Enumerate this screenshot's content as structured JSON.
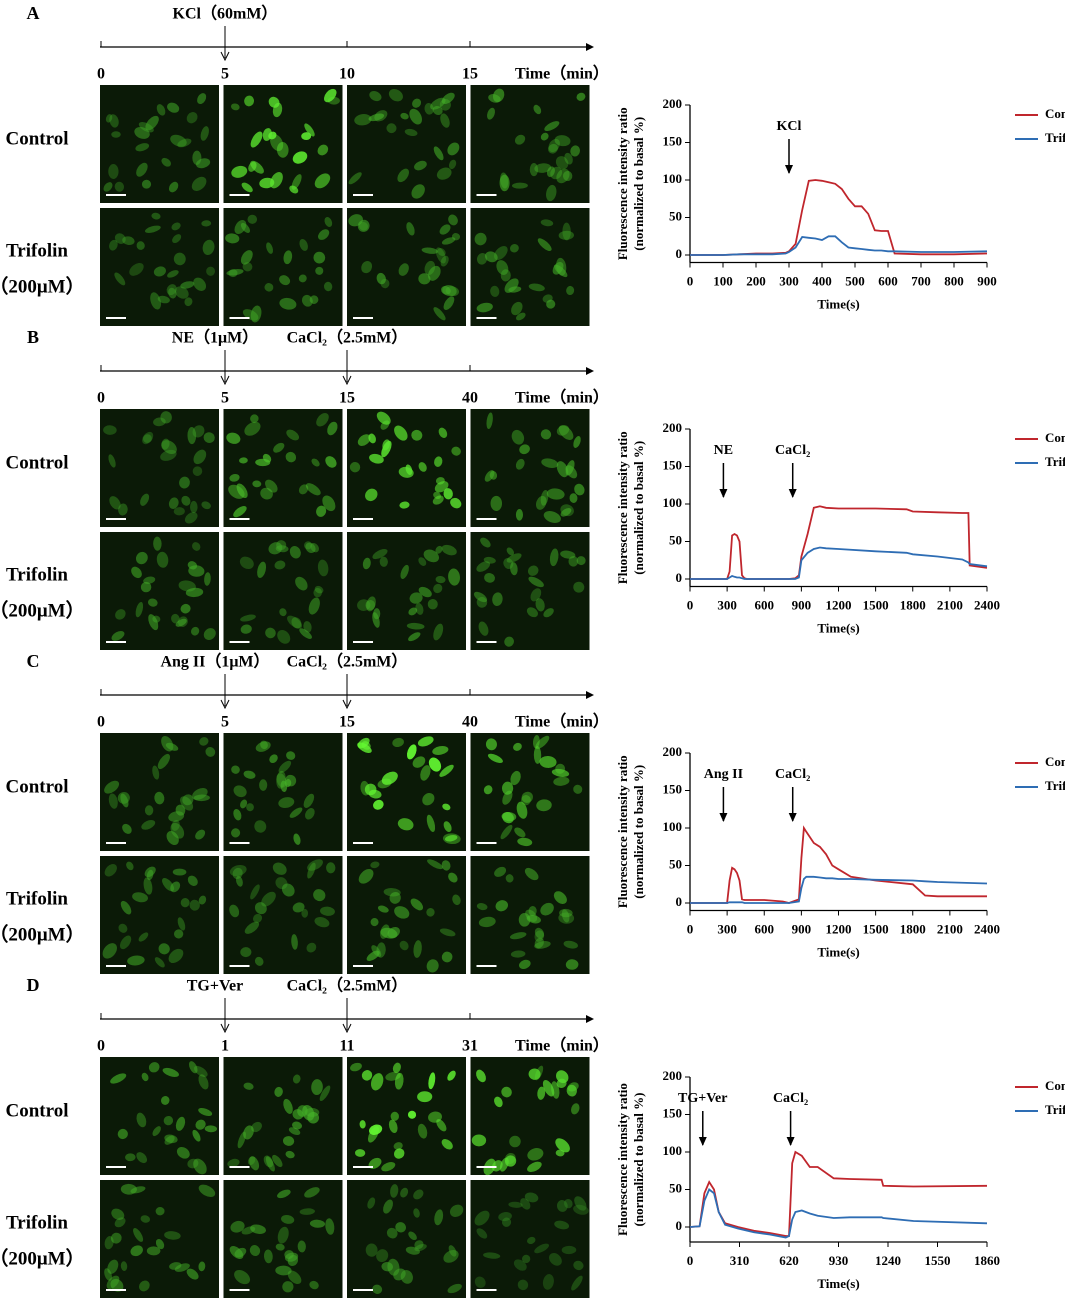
{
  "panels": [
    {
      "letter": "A",
      "events": [
        "KCl（60mM）"
      ],
      "time_ticks": [
        "0",
        "5",
        "10",
        "15"
      ],
      "time_label": "Time（min）",
      "control_label": "Control",
      "treat_label": "Trifolin",
      "treat_dose": "（200μM）"
    },
    {
      "letter": "B",
      "events": [
        "NE（1μM）",
        "CaCl₂（2.5mM）"
      ],
      "time_ticks": [
        "0",
        "5",
        "15",
        "40"
      ],
      "time_label": "Time（min）",
      "control_label": "Control",
      "treat_label": "Trifolin",
      "treat_dose": "（200μM）"
    },
    {
      "letter": "C",
      "events": [
        "Ang II（1μM）",
        "CaCl₂（2.5mM）"
      ],
      "time_ticks": [
        "0",
        "5",
        "15",
        "40"
      ],
      "time_label": "Time（min）",
      "control_label": "Control",
      "treat_label": "Trifolin",
      "treat_dose": "（200μM）"
    },
    {
      "letter": "D",
      "events": [
        "TG+Ver",
        "CaCl₂（2.5mM）"
      ],
      "time_ticks": [
        "0",
        "1",
        "11",
        "31"
      ],
      "time_label": "Time（min）",
      "control_label": "Control",
      "treat_label": "Trifolin",
      "treat_dose": "（200μM）"
    }
  ],
  "chart_data": [
    {
      "type": "line",
      "y_label": [
        "Fluorescence intensity ratio",
        "(normalized to basal %)"
      ],
      "x_label": "Time(s)",
      "x": [
        0,
        100,
        150,
        200,
        250,
        290,
        300,
        320,
        340,
        360,
        380,
        400,
        420,
        440,
        460,
        480,
        500,
        520,
        540,
        560,
        580,
        600,
        620,
        700,
        800,
        900
      ],
      "series": [
        {
          "name": "Control",
          "color": "#c0262d",
          "values": [
            0,
            0,
            1,
            2,
            2,
            3,
            5,
            15,
            60,
            99,
            100,
            99,
            97,
            95,
            88,
            75,
            65,
            65,
            55,
            33,
            32,
            32,
            2,
            1,
            1,
            2
          ]
        },
        {
          "name": "Trifolin",
          "color": "#2e6db4",
          "values": [
            0,
            0,
            1,
            1,
            1,
            2,
            4,
            10,
            24,
            23,
            22,
            20,
            25,
            25,
            17,
            10,
            9,
            8,
            7,
            6,
            6,
            5,
            5,
            4,
            4,
            5
          ]
        }
      ],
      "xlim": [
        0,
        900
      ],
      "xticks": [
        0,
        100,
        200,
        300,
        400,
        500,
        600,
        700,
        800,
        900
      ],
      "ylim": [
        -10,
        200
      ],
      "yticks": [
        0,
        50,
        100,
        150,
        200
      ],
      "annotations": [
        {
          "text": "KCl",
          "x": 300
        }
      ],
      "legend": "top-right"
    },
    {
      "type": "line",
      "y_label": [
        "Fluorescence intensity ratio",
        "(normalized to basal %)"
      ],
      "x_label": "Time(s)",
      "x": [
        0,
        300,
        320,
        340,
        360,
        380,
        400,
        420,
        440,
        460,
        800,
        850,
        880,
        900,
        950,
        1000,
        1050,
        1100,
        1200,
        1500,
        1750,
        1800,
        2000,
        2200,
        2250,
        2260,
        2400
      ],
      "series": [
        {
          "name": "Control",
          "color": "#c0262d",
          "values": [
            0,
            0,
            10,
            58,
            60,
            58,
            50,
            5,
            1,
            0,
            0,
            1,
            5,
            30,
            60,
            95,
            97,
            95,
            94,
            94,
            93,
            90,
            89,
            88,
            88,
            18,
            15
          ]
        },
        {
          "name": "Trifolin",
          "color": "#2e6db4",
          "values": [
            0,
            0,
            2,
            4,
            3,
            2,
            2,
            1,
            0,
            0,
            0,
            0,
            2,
            25,
            35,
            40,
            42,
            41,
            40,
            37,
            35,
            33,
            30,
            26,
            22,
            20,
            17
          ]
        }
      ],
      "xlim": [
        0,
        2400
      ],
      "xticks": [
        0,
        300,
        600,
        900,
        1200,
        1500,
        1800,
        2100,
        2400
      ],
      "ylim": [
        -10,
        200
      ],
      "yticks": [
        0,
        50,
        100,
        150,
        200
      ],
      "annotations": [
        {
          "text": "NE",
          "x": 270
        },
        {
          "text": "CaCl₂",
          "x": 830
        }
      ],
      "legend": "top-right"
    },
    {
      "type": "line",
      "y_label": [
        "Fluorescence intensity ratio",
        "(normalized to basal %)"
      ],
      "x_label": "Time(s)",
      "x": [
        0,
        300,
        320,
        340,
        360,
        380,
        400,
        420,
        440,
        600,
        750,
        800,
        880,
        900,
        920,
        940,
        960,
        1000,
        1050,
        1100,
        1150,
        1200,
        1300,
        1500,
        1800,
        1900,
        2000,
        2400
      ],
      "series": [
        {
          "name": "Control",
          "color": "#c0262d",
          "values": [
            0,
            0,
            30,
            47,
            45,
            40,
            30,
            5,
            4,
            4,
            2,
            0,
            5,
            60,
            100,
            95,
            90,
            80,
            75,
            65,
            50,
            45,
            35,
            30,
            25,
            10,
            9,
            9
          ]
        },
        {
          "name": "Trifolin",
          "color": "#2e6db4",
          "values": [
            0,
            0,
            1,
            1,
            1,
            1,
            1,
            1,
            0,
            0,
            0,
            0,
            2,
            20,
            32,
            35,
            35,
            35,
            34,
            33,
            33,
            32,
            32,
            31,
            30,
            29,
            28,
            26
          ]
        }
      ],
      "xlim": [
        0,
        2400
      ],
      "xticks": [
        0,
        300,
        600,
        900,
        1200,
        1500,
        1800,
        2100,
        2400
      ],
      "ylim": [
        -10,
        200
      ],
      "yticks": [
        0,
        50,
        100,
        150,
        200
      ],
      "annotations": [
        {
          "text": "Ang II",
          "x": 270
        },
        {
          "text": "CaCl₂",
          "x": 830
        }
      ],
      "legend": "top-right"
    },
    {
      "type": "line",
      "y_label": [
        "Fluorescence intensity ratio",
        "(normalized to basal %)"
      ],
      "x_label": "Time(s)",
      "x": [
        0,
        60,
        90,
        120,
        150,
        180,
        220,
        300,
        400,
        500,
        600,
        620,
        640,
        660,
        700,
        750,
        800,
        900,
        1000,
        1200,
        1210,
        1400,
        1860
      ],
      "series": [
        {
          "name": "Control",
          "color": "#c0262d",
          "values": [
            0,
            1,
            45,
            60,
            50,
            20,
            5,
            0,
            -5,
            -8,
            -12,
            -12,
            85,
            100,
            95,
            80,
            80,
            65,
            64,
            63,
            55,
            54,
            55
          ]
        },
        {
          "name": "Trifolin",
          "color": "#2e6db4",
          "values": [
            0,
            1,
            35,
            50,
            45,
            20,
            3,
            -2,
            -7,
            -10,
            -14,
            -12,
            10,
            20,
            22,
            18,
            15,
            12,
            13,
            13,
            12,
            8,
            5
          ]
        }
      ],
      "xlim": [
        0,
        1860
      ],
      "xticks": [
        0,
        310,
        620,
        930,
        1240,
        1550,
        1860
      ],
      "ylim": [
        -20,
        200
      ],
      "yticks": [
        0,
        50,
        100,
        150,
        200
      ],
      "annotations": [
        {
          "text": "TG+Ver",
          "x": 80
        },
        {
          "text": "CaCl₂",
          "x": 630
        }
      ],
      "legend": "top-right"
    }
  ]
}
